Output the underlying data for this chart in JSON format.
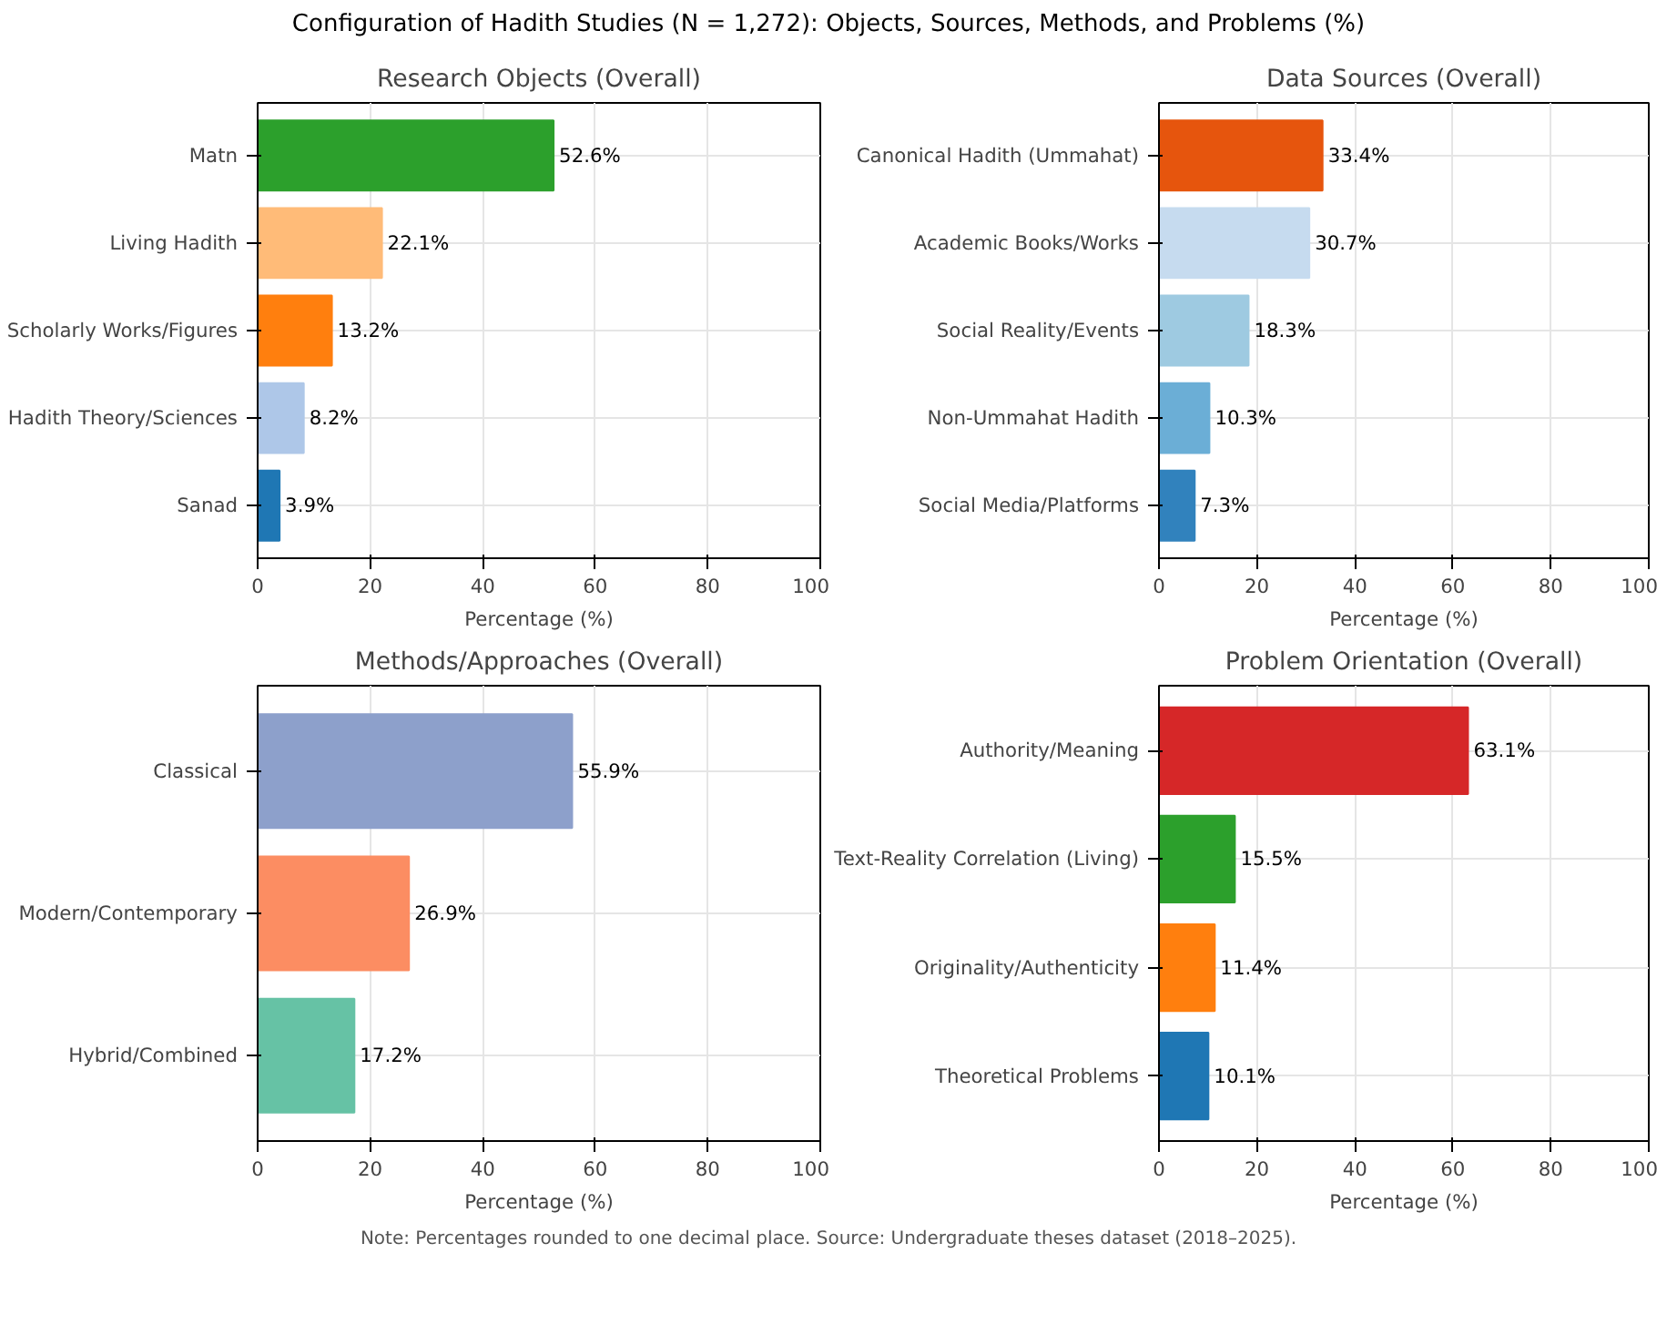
{
  "chart_data": [
    {
      "type": "other",
      "title": "Configuration of Hadith Studies (N = 1,272): Objects, Sources, Methods, and Problems (%)",
      "annotations": [
        "Note: Percentages rounded to one decimal place. Source: Undergraduate theses dataset (2018–2025)."
      ]
    },
    {
      "type": "bar",
      "orientation": "horizontal",
      "title": "Research Objects (Overall)",
      "xlabel": "Percentage (%)",
      "categories": [
        "Matn",
        "Living Hadith",
        "Scholarly Works/Figures",
        "Hadith Theory/Sciences",
        "Sanad"
      ],
      "values": [
        52.6,
        22.1,
        13.2,
        8.2,
        3.9
      ],
      "value_labels": [
        "52.6%",
        "22.1%",
        "13.2%",
        "8.2%",
        "3.9%"
      ],
      "colors": [
        "#2ca02c",
        "#ffbb78",
        "#ff7f0e",
        "#aec7e8",
        "#1f77b4"
      ],
      "xlim": [
        0,
        100
      ],
      "xticks": [
        0,
        20,
        40,
        60,
        80,
        100
      ],
      "grid": true
    },
    {
      "type": "bar",
      "orientation": "horizontal",
      "title": "Data Sources (Overall)",
      "xlabel": "Percentage (%)",
      "categories": [
        "Canonical Hadith (Ummahat)",
        "Academic Books/Works",
        "Social Reality/Events",
        "Non-Ummahat Hadith",
        "Social Media/Platforms"
      ],
      "values": [
        33.4,
        30.7,
        18.3,
        10.3,
        7.3
      ],
      "value_labels": [
        "33.4%",
        "30.7%",
        "18.3%",
        "10.3%",
        "7.3%"
      ],
      "colors": [
        "#e6550d",
        "#c6dbef",
        "#9ecae1",
        "#6baed6",
        "#3182bd"
      ],
      "xlim": [
        0,
        100
      ],
      "xticks": [
        0,
        20,
        40,
        60,
        80,
        100
      ],
      "grid": true
    },
    {
      "type": "bar",
      "orientation": "horizontal",
      "title": "Methods/Approaches (Overall)",
      "xlabel": "Percentage (%)",
      "categories": [
        "Classical",
        "Modern/Contemporary",
        "Hybrid/Combined"
      ],
      "values": [
        55.9,
        26.9,
        17.2
      ],
      "value_labels": [
        "55.9%",
        "26.9%",
        "17.2%"
      ],
      "colors": [
        "#8da0cb",
        "#fc8d62",
        "#66c2a5"
      ],
      "xlim": [
        0,
        100
      ],
      "xticks": [
        0,
        20,
        40,
        60,
        80,
        100
      ],
      "grid": true
    },
    {
      "type": "bar",
      "orientation": "horizontal",
      "title": "Problem Orientation (Overall)",
      "xlabel": "Percentage (%)",
      "categories": [
        "Authority/Meaning",
        "Text-Reality Correlation (Living)",
        "Originality/Authenticity",
        "Theoretical Problems"
      ],
      "values": [
        63.1,
        15.5,
        11.4,
        10.1
      ],
      "value_labels": [
        "63.1%",
        "15.5%",
        "11.4%",
        "10.1%"
      ],
      "colors": [
        "#d62728",
        "#2ca02c",
        "#ff7f0e",
        "#1f77b4"
      ],
      "xlim": [
        0,
        100
      ],
      "xticks": [
        0,
        20,
        40,
        60,
        80,
        100
      ],
      "grid": true
    }
  ]
}
